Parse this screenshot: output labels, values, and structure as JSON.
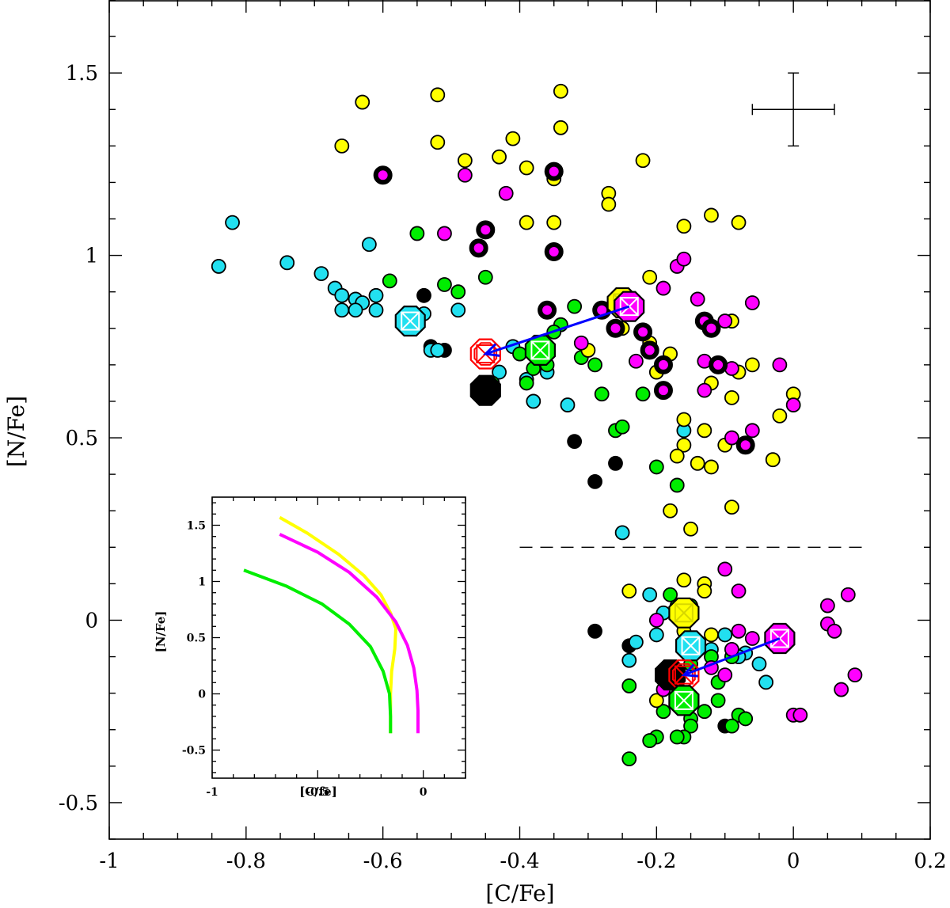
{
  "chart_data": {
    "type": "scatter",
    "xlabel": "[C/Fe]",
    "ylabel": "[N/Fe]",
    "xlim": [
      -1.0,
      0.2
    ],
    "ylim": [
      -0.6,
      1.7
    ],
    "x_ticks": [
      "-1",
      "-0.8",
      "-0.6",
      "-0.4",
      "-0.2",
      "0",
      "0.2"
    ],
    "x_tick_values": [
      -1.0,
      -0.8,
      -0.6,
      -0.4,
      -0.2,
      0.0,
      0.2
    ],
    "y_ticks": [
      "-0.5",
      "0",
      "0.5",
      "1",
      "1.5"
    ],
    "y_tick_values": [
      -0.5,
      0.0,
      0.5,
      1.0,
      1.5
    ],
    "threshold_line": {
      "y": 0.2,
      "x_from": -0.4,
      "x_to": 0.1,
      "style": "dashed"
    },
    "error_bar": {
      "x": 0.0,
      "y": 1.4,
      "xerr": 0.06,
      "yerr": 0.1
    },
    "colors": {
      "yellow": "#ffff00",
      "magenta": "#ff00ff",
      "green": "#00ee00",
      "cyan": "#22e0f0",
      "black": "#000000",
      "red": "#ff0000",
      "blue": "#0000ff"
    },
    "series": [
      {
        "name": "yellow",
        "color": "#ffff00",
        "points": [
          [
            -0.63,
            1.42
          ],
          [
            -0.52,
            1.44
          ],
          [
            -0.66,
            1.3
          ],
          [
            -0.52,
            1.31
          ],
          [
            -0.34,
            1.45
          ],
          [
            -0.34,
            1.35
          ],
          [
            -0.48,
            1.26
          ],
          [
            -0.43,
            1.27
          ],
          [
            -0.41,
            1.32
          ],
          [
            -0.39,
            1.24
          ],
          [
            -0.35,
            1.21
          ],
          [
            -0.35,
            1.09
          ],
          [
            -0.39,
            1.09
          ],
          [
            -0.27,
            1.17
          ],
          [
            -0.27,
            1.14
          ],
          [
            -0.22,
            1.26
          ],
          [
            -0.21,
            0.94
          ],
          [
            -0.16,
            1.08
          ],
          [
            -0.12,
            1.11
          ],
          [
            -0.08,
            1.09
          ],
          [
            -0.25,
            0.8
          ],
          [
            -0.21,
            0.76
          ],
          [
            -0.18,
            0.73
          ],
          [
            -0.2,
            0.68
          ],
          [
            -0.16,
            0.55
          ],
          [
            -0.16,
            0.48
          ],
          [
            -0.13,
            0.52
          ],
          [
            -0.12,
            0.42
          ],
          [
            -0.14,
            0.43
          ],
          [
            -0.1,
            0.48
          ],
          [
            -0.17,
            0.45
          ],
          [
            -0.09,
            0.61
          ],
          [
            -0.08,
            0.68
          ],
          [
            -0.06,
            0.7
          ],
          [
            -0.09,
            0.82
          ],
          [
            -0.03,
            0.44
          ],
          [
            -0.02,
            0.56
          ],
          [
            0.0,
            0.62
          ],
          [
            -0.18,
            0.3
          ],
          [
            -0.15,
            0.25
          ],
          [
            -0.09,
            0.31
          ],
          [
            -0.12,
            0.65
          ],
          [
            -0.3,
            0.74
          ],
          [
            -0.24,
            0.08
          ],
          [
            -0.16,
            0.11
          ],
          [
            -0.13,
            0.1
          ],
          [
            -0.13,
            0.08
          ],
          [
            -0.16,
            -0.03
          ],
          [
            -0.12,
            -0.04
          ],
          [
            -0.2,
            -0.22
          ]
        ]
      },
      {
        "name": "magenta",
        "color": "#ff00ff",
        "points": [
          [
            -0.48,
            1.22
          ],
          [
            -0.51,
            1.06
          ],
          [
            -0.42,
            1.17
          ],
          [
            -0.35,
            1.23
          ],
          [
            -0.35,
            1.01
          ],
          [
            -0.45,
            1.07
          ],
          [
            -0.46,
            1.02
          ],
          [
            -0.19,
            0.91
          ],
          [
            -0.17,
            0.97
          ],
          [
            -0.16,
            0.99
          ],
          [
            -0.14,
            0.88
          ],
          [
            -0.13,
            0.82
          ],
          [
            -0.12,
            0.8
          ],
          [
            -0.13,
            0.71
          ],
          [
            -0.11,
            0.7
          ],
          [
            -0.09,
            0.69
          ],
          [
            -0.06,
            0.87
          ],
          [
            -0.1,
            0.82
          ],
          [
            -0.02,
            0.7
          ],
          [
            -0.13,
            0.63
          ],
          [
            -0.22,
            0.79
          ],
          [
            -0.21,
            0.74
          ],
          [
            -0.23,
            0.71
          ],
          [
            -0.19,
            0.7
          ],
          [
            -0.31,
            0.76
          ],
          [
            -0.26,
            0.8
          ],
          [
            -0.28,
            0.85
          ],
          [
            -0.09,
            0.5
          ],
          [
            -0.06,
            0.52
          ],
          [
            -0.07,
            0.48
          ],
          [
            0.0,
            0.59
          ],
          [
            -0.36,
            0.85
          ],
          [
            -0.6,
            1.22
          ],
          [
            -0.19,
            0.63
          ],
          [
            -0.1,
            0.14
          ],
          [
            -0.08,
            0.08
          ],
          [
            -0.06,
            -0.05
          ],
          [
            -0.08,
            -0.03
          ],
          [
            -0.09,
            -0.08
          ],
          [
            -0.12,
            -0.13
          ],
          [
            -0.1,
            -0.15
          ],
          [
            0.05,
            0.04
          ],
          [
            0.08,
            0.07
          ],
          [
            0.05,
            -0.01
          ],
          [
            0.06,
            -0.03
          ],
          [
            0.09,
            -0.15
          ],
          [
            0.07,
            -0.19
          ],
          [
            0.0,
            -0.26
          ],
          [
            0.01,
            -0.26
          ],
          [
            -0.2,
            0.0
          ],
          [
            -0.19,
            -0.19
          ]
        ]
      },
      {
        "name": "green",
        "color": "#00ee00",
        "points": [
          [
            -0.55,
            1.06
          ],
          [
            -0.59,
            0.93
          ],
          [
            -0.51,
            0.92
          ],
          [
            -0.49,
            0.9
          ],
          [
            -0.45,
            0.94
          ],
          [
            -0.34,
            0.81
          ],
          [
            -0.35,
            0.79
          ],
          [
            -0.32,
            0.86
          ],
          [
            -0.37,
            0.74
          ],
          [
            -0.36,
            0.7
          ],
          [
            -0.38,
            0.69
          ],
          [
            -0.31,
            0.72
          ],
          [
            -0.28,
            0.62
          ],
          [
            -0.22,
            0.62
          ],
          [
            -0.2,
            0.42
          ],
          [
            -0.17,
            0.37
          ],
          [
            -0.26,
            0.52
          ],
          [
            -0.25,
            0.53
          ],
          [
            -0.29,
            0.7
          ],
          [
            -0.39,
            0.65
          ],
          [
            -0.44,
            0.65
          ],
          [
            -0.4,
            0.73
          ],
          [
            -0.17,
            0.04
          ],
          [
            -0.18,
            0.07
          ],
          [
            -0.15,
            0.04
          ],
          [
            -0.15,
            -0.08
          ],
          [
            -0.15,
            -0.12
          ],
          [
            -0.11,
            -0.17
          ],
          [
            -0.09,
            -0.1
          ],
          [
            -0.12,
            -0.1
          ],
          [
            -0.24,
            -0.18
          ],
          [
            -0.19,
            -0.25
          ],
          [
            -0.16,
            -0.23
          ],
          [
            -0.15,
            -0.27
          ],
          [
            -0.15,
            -0.29
          ],
          [
            -0.13,
            -0.25
          ],
          [
            -0.11,
            -0.22
          ],
          [
            -0.08,
            -0.26
          ],
          [
            -0.07,
            -0.27
          ],
          [
            -0.09,
            -0.29
          ],
          [
            -0.16,
            -0.32
          ],
          [
            -0.17,
            -0.32
          ],
          [
            -0.2,
            -0.32
          ],
          [
            -0.21,
            -0.33
          ],
          [
            -0.24,
            -0.38
          ]
        ]
      },
      {
        "name": "cyan",
        "color": "#22e0f0",
        "points": [
          [
            -0.84,
            0.97
          ],
          [
            -0.82,
            1.09
          ],
          [
            -0.74,
            0.98
          ],
          [
            -0.69,
            0.95
          ],
          [
            -0.67,
            0.91
          ],
          [
            -0.66,
            0.89
          ],
          [
            -0.66,
            0.85
          ],
          [
            -0.64,
            0.88
          ],
          [
            -0.63,
            0.87
          ],
          [
            -0.64,
            0.85
          ],
          [
            -0.61,
            0.89
          ],
          [
            -0.61,
            0.85
          ],
          [
            -0.62,
            1.03
          ],
          [
            -0.54,
            0.84
          ],
          [
            -0.53,
            0.74
          ],
          [
            -0.52,
            0.74
          ],
          [
            -0.49,
            0.85
          ],
          [
            -0.41,
            0.75
          ],
          [
            -0.39,
            0.66
          ],
          [
            -0.38,
            0.6
          ],
          [
            -0.36,
            0.68
          ],
          [
            -0.33,
            0.59
          ],
          [
            -0.25,
            0.24
          ],
          [
            -0.16,
            0.52
          ],
          [
            -0.43,
            0.68
          ],
          [
            -0.21,
            0.07
          ],
          [
            -0.19,
            0.02
          ],
          [
            -0.2,
            -0.04
          ],
          [
            -0.24,
            -0.11
          ],
          [
            -0.23,
            -0.06
          ],
          [
            -0.1,
            -0.04
          ],
          [
            -0.12,
            -0.08
          ],
          [
            -0.07,
            -0.09
          ],
          [
            -0.05,
            -0.12
          ],
          [
            -0.04,
            -0.17
          ],
          [
            -0.08,
            -0.1
          ]
        ]
      },
      {
        "name": "black",
        "color": "#000000",
        "points": [
          [
            -0.54,
            0.89
          ],
          [
            -0.53,
            0.75
          ],
          [
            -0.51,
            0.74
          ],
          [
            -0.32,
            0.49
          ],
          [
            -0.29,
            0.38
          ],
          [
            -0.26,
            0.43
          ],
          [
            -0.44,
            0.64
          ],
          [
            -0.24,
            -0.07
          ],
          [
            -0.29,
            -0.03
          ],
          [
            -0.17,
            -0.18
          ],
          [
            -0.15,
            -0.21
          ],
          [
            -0.1,
            -0.29
          ]
        ]
      },
      {
        "name": "magenta-ringed",
        "color": "#ff00ff",
        "points": [
          [
            -0.6,
            1.22
          ],
          [
            -0.35,
            1.23
          ],
          [
            -0.35,
            1.01
          ],
          [
            -0.45,
            1.07
          ],
          [
            -0.46,
            1.02
          ],
          [
            -0.36,
            0.85
          ],
          [
            -0.28,
            0.85
          ],
          [
            -0.26,
            0.8
          ],
          [
            -0.22,
            0.79
          ],
          [
            -0.21,
            0.74
          ],
          [
            -0.19,
            0.7
          ],
          [
            -0.19,
            0.63
          ],
          [
            -0.13,
            0.82
          ],
          [
            -0.12,
            0.8
          ],
          [
            -0.11,
            0.7
          ],
          [
            -0.07,
            0.48
          ]
        ]
      },
      {
        "name": "mean-markers",
        "points": [
          {
            "x": -0.25,
            "y": 0.87,
            "color": "#ffff00"
          },
          {
            "x": -0.24,
            "y": 0.86,
            "color": "#ff00ff"
          },
          {
            "x": -0.37,
            "y": 0.74,
            "color": "#00ee00"
          },
          {
            "x": -0.56,
            "y": 0.82,
            "color": "#22e0f0"
          },
          {
            "x": -0.45,
            "y": 0.63,
            "color": "#000000"
          },
          {
            "x": -0.45,
            "y": 0.73,
            "color": "#ff0000"
          },
          {
            "x": -0.16,
            "y": 0.02,
            "color": "#ffff00"
          },
          {
            "x": -0.15,
            "y": -0.07,
            "color": "#22e0f0"
          },
          {
            "x": -0.02,
            "y": -0.05,
            "color": "#ff00ff"
          },
          {
            "x": -0.18,
            "y": -0.15,
            "color": "#000000"
          },
          {
            "x": -0.16,
            "y": -0.15,
            "color": "#ff0000"
          },
          {
            "x": -0.16,
            "y": -0.22,
            "color": "#00ee00"
          }
        ]
      }
    ],
    "arrows": [
      {
        "from": [
          -0.24,
          0.86
        ],
        "to": [
          -0.45,
          0.73
        ],
        "color": "#0000ff"
      },
      {
        "from": [
          -0.02,
          -0.05
        ],
        "to": [
          -0.16,
          -0.15
        ],
        "color": "#0000ff"
      }
    ],
    "inset": {
      "xlabel": "[C/fe]",
      "ylabel": "[N/Fe]",
      "xlim": [
        -1.0,
        0.2
      ],
      "ylim": [
        -0.75,
        1.75
      ],
      "x_ticks": [
        "-1",
        "-0.5",
        "0"
      ],
      "x_tick_values": [
        -1.0,
        -0.5,
        0.0
      ],
      "y_ticks": [
        "-0.5",
        "0",
        "0.5",
        "1",
        "1.5"
      ],
      "y_tick_values": [
        -0.5,
        0.0,
        0.5,
        1.0,
        1.5
      ],
      "curves": [
        {
          "name": "yellow",
          "color": "#ffff00",
          "points": [
            [
              -0.68,
              1.57
            ],
            [
              -0.55,
              1.43
            ],
            [
              -0.4,
              1.24
            ],
            [
              -0.28,
              1.05
            ],
            [
              -0.2,
              0.88
            ],
            [
              -0.155,
              0.72
            ],
            [
              -0.13,
              0.58
            ],
            [
              -0.135,
              0.4
            ],
            [
              -0.15,
              0.2
            ],
            [
              -0.155,
              0.0
            ],
            [
              -0.155,
              -0.35
            ]
          ]
        },
        {
          "name": "magenta",
          "color": "#ff00ff",
          "points": [
            [
              -0.68,
              1.42
            ],
            [
              -0.5,
              1.26
            ],
            [
              -0.35,
              1.08
            ],
            [
              -0.22,
              0.86
            ],
            [
              -0.13,
              0.64
            ],
            [
              -0.075,
              0.43
            ],
            [
              -0.045,
              0.23
            ],
            [
              -0.03,
              0.03
            ],
            [
              -0.025,
              -0.15
            ],
            [
              -0.025,
              -0.35
            ]
          ]
        },
        {
          "name": "green",
          "color": "#00ee00",
          "points": [
            [
              -0.85,
              1.1
            ],
            [
              -0.65,
              0.96
            ],
            [
              -0.48,
              0.8
            ],
            [
              -0.35,
              0.62
            ],
            [
              -0.25,
              0.42
            ],
            [
              -0.19,
              0.2
            ],
            [
              -0.16,
              0.0
            ],
            [
              -0.155,
              -0.2
            ],
            [
              -0.155,
              -0.35
            ]
          ]
        }
      ]
    }
  }
}
